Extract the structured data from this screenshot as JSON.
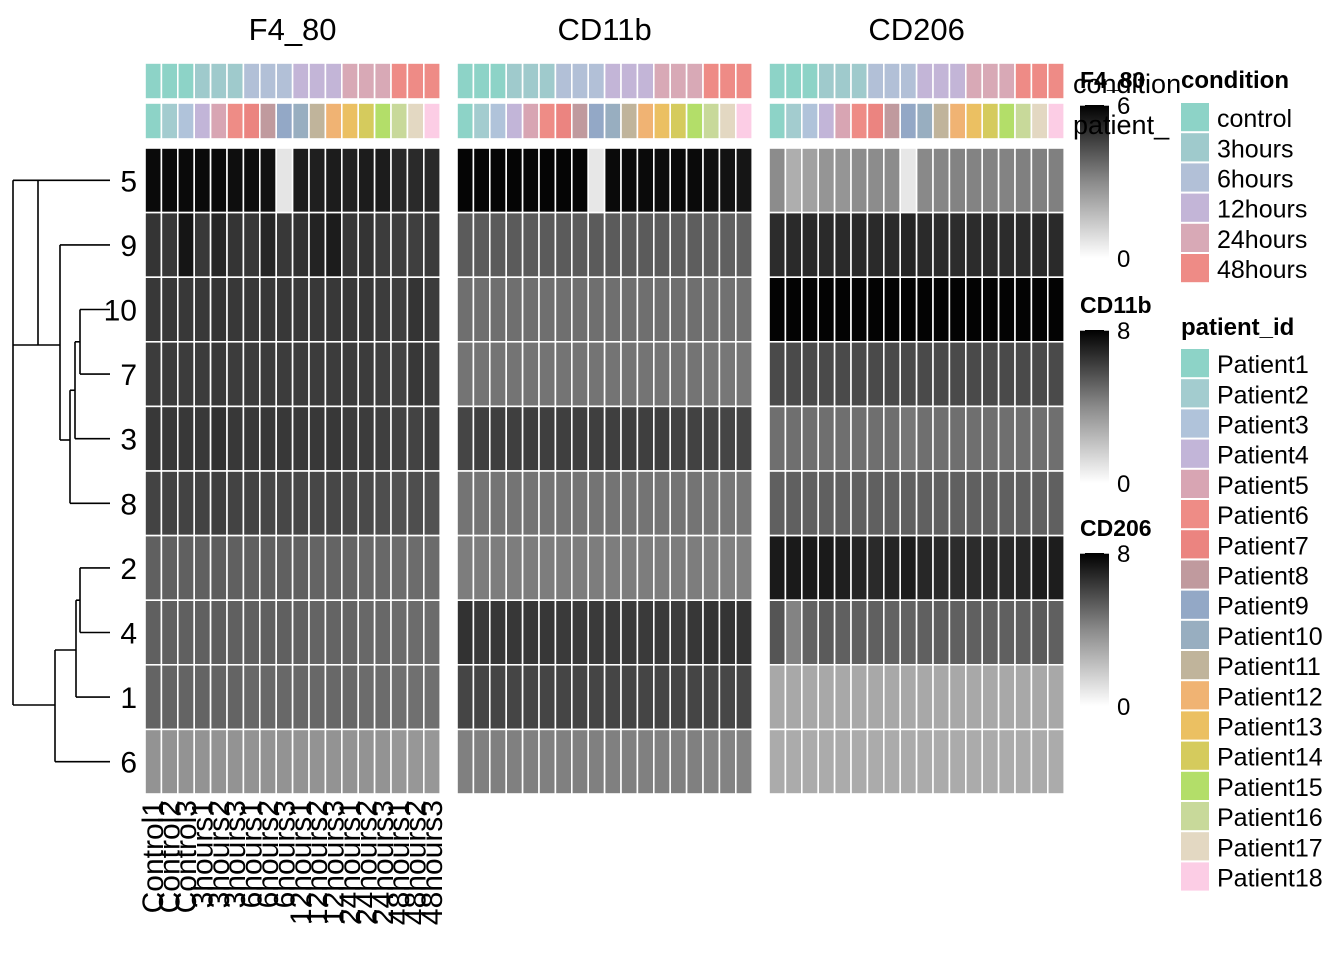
{
  "chart_data": {
    "type": "heatmap",
    "panels": [
      "F4_80",
      "CD11b",
      "CD206"
    ],
    "rows": [
      "5",
      "9",
      "10",
      "7",
      "3",
      "8",
      "2",
      "4",
      "1",
      "6"
    ],
    "columns": [
      "Control1",
      "Control2",
      "Control3",
      "3hours1",
      "3hours2",
      "3hours3",
      "6hours1",
      "6hours2",
      "6hours3",
      "12hours1",
      "12hours2",
      "12hours3",
      "24hours1",
      "24hours2",
      "24hours3",
      "48hours1",
      "48hours2",
      "48hours3"
    ],
    "column_condition": [
      "control",
      "control",
      "control",
      "3hours",
      "3hours",
      "3hours",
      "6hours",
      "6hours",
      "6hours",
      "12hours",
      "12hours",
      "12hours",
      "24hours",
      "24hours",
      "24hours",
      "48hours",
      "48hours",
      "48hours"
    ],
    "column_patient": [
      "Patient1",
      "Patient2",
      "Patient3",
      "Patient4",
      "Patient5",
      "Patient6",
      "Patient7",
      "Patient8",
      "Patient9",
      "Patient10",
      "Patient11",
      "Patient12",
      "Patient13",
      "Patient14",
      "Patient15",
      "Patient16",
      "Patient17",
      "Patient18"
    ],
    "values": {
      "F4_80": [
        [
          5.7,
          5.7,
          5.7,
          5.7,
          5.7,
          5.6,
          5.6,
          5.5,
          0.2,
          5.2,
          5.1,
          5.2,
          5.0,
          5.2,
          5.2,
          4.8,
          4.8,
          4.8
        ],
        [
          4.5,
          4.4,
          5.4,
          4.4,
          4.9,
          4.5,
          4.4,
          4.9,
          4.4,
          4.6,
          5.0,
          5.2,
          4.4,
          4.5,
          4.3,
          4.2,
          4.2,
          4.3
        ],
        [
          4.4,
          4.4,
          4.4,
          4.4,
          4.5,
          4.4,
          4.4,
          4.4,
          4.4,
          4.4,
          4.4,
          4.4,
          4.4,
          4.4,
          4.3,
          4.2,
          4.5,
          4.3
        ],
        [
          4.3,
          4.3,
          4.3,
          4.3,
          4.4,
          4.3,
          4.3,
          4.3,
          4.3,
          4.3,
          4.3,
          4.3,
          4.3,
          4.3,
          4.2,
          4.1,
          4.4,
          4.2
        ],
        [
          4.4,
          4.4,
          4.4,
          4.4,
          4.6,
          4.4,
          4.4,
          4.4,
          4.4,
          4.4,
          4.4,
          4.4,
          4.3,
          4.3,
          4.2,
          4.1,
          4.1,
          4.2
        ],
        [
          4.1,
          4.1,
          4.1,
          4.1,
          4.2,
          4.1,
          4.1,
          4.0,
          4.0,
          4.0,
          4.0,
          4.0,
          3.9,
          3.9,
          3.8,
          3.7,
          3.8,
          3.7
        ],
        [
          3.3,
          3.3,
          3.3,
          3.3,
          3.4,
          3.3,
          3.3,
          3.3,
          3.3,
          3.3,
          3.2,
          3.2,
          3.2,
          3.1,
          3.1,
          3.0,
          3.0,
          3.0
        ],
        [
          3.3,
          3.3,
          3.3,
          3.3,
          3.4,
          3.3,
          3.3,
          3.3,
          3.3,
          3.3,
          3.2,
          3.2,
          3.2,
          3.1,
          3.1,
          3.0,
          3.0,
          3.0
        ],
        [
          3.2,
          3.2,
          3.2,
          3.2,
          3.2,
          3.2,
          3.1,
          3.1,
          3.1,
          3.1,
          3.1,
          3.1,
          3.1,
          3.0,
          3.0,
          2.9,
          2.9,
          2.9
        ],
        [
          2.0,
          2.0,
          2.0,
          2.0,
          2.0,
          2.0,
          2.0,
          2.0,
          2.0,
          2.0,
          2.0,
          2.0,
          2.0,
          2.0,
          2.0,
          1.9,
          1.9,
          1.9
        ]
      ],
      "CD11b": [
        [
          7.8,
          7.8,
          7.8,
          7.8,
          7.8,
          7.8,
          7.8,
          7.8,
          0.2,
          7.6,
          7.6,
          7.6,
          7.5,
          7.6,
          7.6,
          7.4,
          7.3,
          7.2
        ],
        [
          4.6,
          4.6,
          4.6,
          4.6,
          4.6,
          4.6,
          4.6,
          4.6,
          4.6,
          4.6,
          4.6,
          4.6,
          4.6,
          4.5,
          4.5,
          4.4,
          4.4,
          4.4
        ],
        [
          3.9,
          3.9,
          3.9,
          3.9,
          3.9,
          3.9,
          3.9,
          3.9,
          3.9,
          3.9,
          3.9,
          3.9,
          3.9,
          3.9,
          3.9,
          3.8,
          3.8,
          3.8
        ],
        [
          3.7,
          3.7,
          3.7,
          3.7,
          3.7,
          3.7,
          3.7,
          3.7,
          3.7,
          3.7,
          3.7,
          3.7,
          3.7,
          3.7,
          3.7,
          3.6,
          3.6,
          3.6
        ],
        [
          5.4,
          5.6,
          5.6,
          5.6,
          5.6,
          5.6,
          5.6,
          5.6,
          5.6,
          5.6,
          5.6,
          5.6,
          5.6,
          5.5,
          5.5,
          5.4,
          5.4,
          5.4
        ],
        [
          3.7,
          3.7,
          3.7,
          3.7,
          3.7,
          3.7,
          3.7,
          3.7,
          3.7,
          3.7,
          3.7,
          3.7,
          3.7,
          3.7,
          3.7,
          3.6,
          3.6,
          3.6
        ],
        [
          3.4,
          3.4,
          3.4,
          3.4,
          3.4,
          3.4,
          3.4,
          3.4,
          3.4,
          3.4,
          3.4,
          3.4,
          3.4,
          3.4,
          3.4,
          3.3,
          3.3,
          3.3
        ],
        [
          6.1,
          5.8,
          5.9,
          5.9,
          5.9,
          5.9,
          5.8,
          5.8,
          5.8,
          5.8,
          5.8,
          5.8,
          5.8,
          5.7,
          5.9,
          6.0,
          6.0,
          6.0
        ],
        [
          5.4,
          5.4,
          5.4,
          5.4,
          5.4,
          5.4,
          5.4,
          5.4,
          5.4,
          5.4,
          5.4,
          5.4,
          5.4,
          5.4,
          5.4,
          5.3,
          5.3,
          5.3
        ],
        [
          3.3,
          3.3,
          3.3,
          3.3,
          3.3,
          3.3,
          3.3,
          3.3,
          3.3,
          3.3,
          3.3,
          3.3,
          3.3,
          3.3,
          3.3,
          3.2,
          3.2,
          3.2
        ]
      ],
      "CD206": [
        [
          2.9,
          1.8,
          2.2,
          2.6,
          2.6,
          2.9,
          2.9,
          2.9,
          0.2,
          3.0,
          3.1,
          3.2,
          3.2,
          3.2,
          3.2,
          3.3,
          3.3,
          3.3
        ],
        [
          6.3,
          6.4,
          6.4,
          6.4,
          6.4,
          6.4,
          6.4,
          6.4,
          6.6,
          6.4,
          6.3,
          6.3,
          6.3,
          6.3,
          6.3,
          6.3,
          6.4,
          6.4
        ],
        [
          7.9,
          7.9,
          7.9,
          7.9,
          7.9,
          7.9,
          7.9,
          7.9,
          7.9,
          7.9,
          7.9,
          7.9,
          7.9,
          7.9,
          7.9,
          7.9,
          7.9,
          7.9
        ],
        [
          5.2,
          5.2,
          5.2,
          5.2,
          5.2,
          5.2,
          5.2,
          5.2,
          5.2,
          5.2,
          5.2,
          5.2,
          5.2,
          5.2,
          5.2,
          5.2,
          5.2,
          5.2
        ],
        [
          3.9,
          3.9,
          3.9,
          3.9,
          3.9,
          3.9,
          3.9,
          3.9,
          3.6,
          3.9,
          3.9,
          3.9,
          3.9,
          3.9,
          3.9,
          3.9,
          3.9,
          3.9
        ],
        [
          4.4,
          4.4,
          4.4,
          4.4,
          4.4,
          4.4,
          4.4,
          4.4,
          4.4,
          4.4,
          4.4,
          4.4,
          4.4,
          4.4,
          4.4,
          4.4,
          4.4,
          4.4
        ],
        [
          7.0,
          7.0,
          7.0,
          7.0,
          6.8,
          6.6,
          6.4,
          6.6,
          6.9,
          6.5,
          6.4,
          6.3,
          6.3,
          6.3,
          6.4,
          6.5,
          6.9,
          6.9
        ],
        [
          4.8,
          3.2,
          4.3,
          4.6,
          4.4,
          4.4,
          4.4,
          4.3,
          4.3,
          4.4,
          4.5,
          4.4,
          4.4,
          4.4,
          4.4,
          4.4,
          4.6,
          4.4
        ],
        [
          2.0,
          2.0,
          2.0,
          2.0,
          2.0,
          2.0,
          2.0,
          2.0,
          2.0,
          2.0,
          2.0,
          2.0,
          2.0,
          2.0,
          2.0,
          2.0,
          2.0,
          2.0
        ],
        [
          1.9,
          1.9,
          1.9,
          1.9,
          1.9,
          1.9,
          1.9,
          1.9,
          1.9,
          1.9,
          1.9,
          1.9,
          1.9,
          1.9,
          1.9,
          1.9,
          1.9,
          1.9
        ]
      ]
    },
    "color_scales": [
      {
        "title": "F4_80",
        "min": 0,
        "max": 6,
        "ticks": [
          0,
          6
        ]
      },
      {
        "title": "CD11b",
        "min": 0,
        "max": 8,
        "ticks": [
          0,
          8
        ]
      },
      {
        "title": "CD206",
        "min": 0,
        "max": 8,
        "ticks": [
          0,
          8
        ]
      }
    ],
    "annotation_labels": [
      "condition",
      "patient_"
    ],
    "legend_condition": {
      "title": "condition",
      "entries": [
        {
          "label": "control",
          "color": "#8DD3C7"
        },
        {
          "label": "3hours",
          "color": "#9FCACC"
        },
        {
          "label": "6hours",
          "color": "#B2C0D7"
        },
        {
          "label": "12hours",
          "color": "#C3B5D7"
        },
        {
          "label": "24hours",
          "color": "#D8A9B6"
        },
        {
          "label": "48hours",
          "color": "#EE8B86"
        }
      ]
    },
    "legend_patient": {
      "title": "patient_id",
      "entries": [
        {
          "label": "Patient1",
          "color": "#8DD3C7"
        },
        {
          "label": "Patient2",
          "color": "#A3CCCF"
        },
        {
          "label": "Patient3",
          "color": "#B0C3DA"
        },
        {
          "label": "Patient4",
          "color": "#C2B5D8"
        },
        {
          "label": "Patient5",
          "color": "#D8A5B3"
        },
        {
          "label": "Patient6",
          "color": "#EE8C86"
        },
        {
          "label": "Patient7",
          "color": "#EB8480"
        },
        {
          "label": "Patient8",
          "color": "#C09A9E"
        },
        {
          "label": "Patient9",
          "color": "#93A8C6"
        },
        {
          "label": "Patient10",
          "color": "#98AEC0"
        },
        {
          "label": "Patient11",
          "color": "#C0B49B"
        },
        {
          "label": "Patient12",
          "color": "#F0B373"
        },
        {
          "label": "Patient13",
          "color": "#EBC062"
        },
        {
          "label": "Patient14",
          "color": "#D5CB5D"
        },
        {
          "label": "Patient15",
          "color": "#B3DE69"
        },
        {
          "label": "Patient16",
          "color": "#C8D99A"
        },
        {
          "label": "Patient17",
          "color": "#E3D8C2"
        },
        {
          "label": "Patient18",
          "color": "#FCCDE5"
        }
      ]
    }
  }
}
